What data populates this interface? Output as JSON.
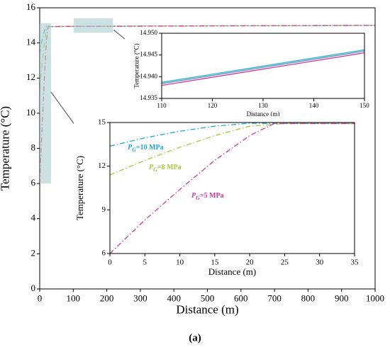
{
  "chart_data": [
    {
      "type": "line",
      "xlabel": "Distance (m)",
      "ylabel": "Temperature (°C)",
      "xlim": [
        0,
        1000
      ],
      "ylim": [
        0,
        16
      ],
      "xticks": [
        0,
        100,
        200,
        300,
        400,
        500,
        600,
        700,
        800,
        900,
        1000
      ],
      "yticks": [
        0,
        2,
        4,
        6,
        8,
        10,
        12,
        14,
        16
      ],
      "line_style": "dash-dot",
      "series": [
        {
          "color": "#1ea8d8",
          "x": [
            0,
            5,
            10,
            15,
            20,
            25,
            100,
            500,
            1000
          ],
          "values": [
            13.38,
            13.95,
            14.4,
            14.75,
            14.95,
            14.93,
            14.94,
            14.97,
            15.0
          ]
        },
        {
          "color": "#a8c83a",
          "x": [
            0,
            5,
            10,
            15,
            20,
            25,
            100,
            500,
            1000
          ],
          "values": [
            11.4,
            12.4,
            13.3,
            14.1,
            14.75,
            14.93,
            14.94,
            14.97,
            15.0
          ]
        },
        {
          "color": "#d4389c",
          "x": [
            0,
            5,
            10,
            15,
            20,
            25,
            100,
            500,
            1000
          ],
          "values": [
            6.0,
            8.3,
            10.4,
            12.4,
            14.1,
            14.93,
            14.94,
            14.97,
            15.0
          ]
        }
      ]
    },
    {
      "type": "line",
      "xlabel": "Distance (m)",
      "ylabel": "Temperature (°C)",
      "xlim": [
        110,
        150
      ],
      "ylim": [
        14.935,
        14.95
      ],
      "xticks": [
        110,
        120,
        130,
        140,
        150
      ],
      "yticks": [
        {
          "value": 14.935,
          "label": "14.935"
        },
        {
          "value": 14.94,
          "label": "14.940"
        },
        {
          "value": 14.945,
          "label": "14.945"
        },
        {
          "value": 14.95,
          "label": "14.950"
        }
      ],
      "line_style": "solid",
      "series": [
        {
          "color": "#2bb3c0",
          "x": [
            110,
            150
          ],
          "values": [
            14.9387,
            14.9462
          ]
        },
        {
          "color": "#5b8fd0",
          "x": [
            110,
            150
          ],
          "values": [
            14.9384,
            14.9459
          ]
        },
        {
          "color": "#d0399a",
          "x": [
            110,
            150
          ],
          "values": [
            14.938,
            14.9455
          ]
        }
      ]
    },
    {
      "type": "line",
      "xlabel": "Distance (m)",
      "ylabel": "Temperature (°C)",
      "xlim": [
        0,
        35
      ],
      "ylim": [
        6,
        15
      ],
      "xticks": [
        0,
        5,
        10,
        15,
        20,
        25,
        30,
        35
      ],
      "yticks": [
        6,
        9,
        12,
        15
      ],
      "line_style": "dash-dot",
      "series": [
        {
          "name": "PG=10 MPa",
          "color": "#1ea8d8",
          "x": [
            0,
            5,
            10,
            15,
            20,
            25,
            35
          ],
          "values": [
            13.38,
            13.95,
            14.4,
            14.75,
            14.95,
            14.93,
            14.93
          ]
        },
        {
          "name": "PG=8 MPa",
          "color": "#a8c83a",
          "x": [
            0,
            5,
            10,
            15,
            20,
            25,
            35
          ],
          "values": [
            11.4,
            12.4,
            13.3,
            14.1,
            14.75,
            14.93,
            14.93
          ]
        },
        {
          "name": "PG=5 MPa",
          "color": "#d4389c",
          "x": [
            0,
            5,
            10,
            15,
            20,
            23.5,
            35
          ],
          "values": [
            6.0,
            8.3,
            10.4,
            12.4,
            14.1,
            14.93,
            14.93
          ]
        }
      ]
    }
  ],
  "caption": "(a)"
}
